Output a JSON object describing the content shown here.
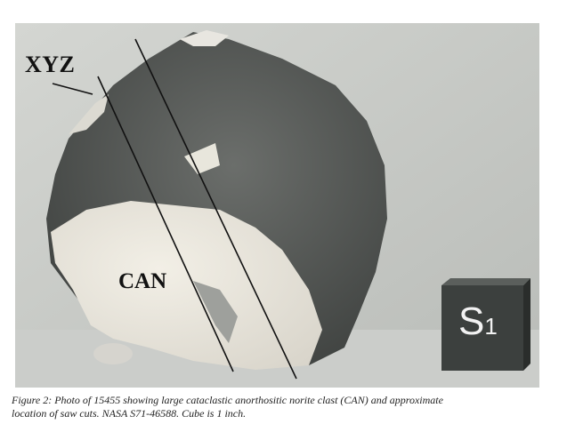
{
  "figure": {
    "labels": {
      "xyz": "XYZ",
      "can": "CAN"
    },
    "cube": {
      "letter": "S",
      "subscript": "1"
    },
    "caption_line1": "Figure 2:  Photo of 15455 showing large cataclastic anorthositic norite clast (CAN) and approximate",
    "caption_line2": "location of saw cuts.  NASA S71-46588.  Cube is 1 inch."
  }
}
